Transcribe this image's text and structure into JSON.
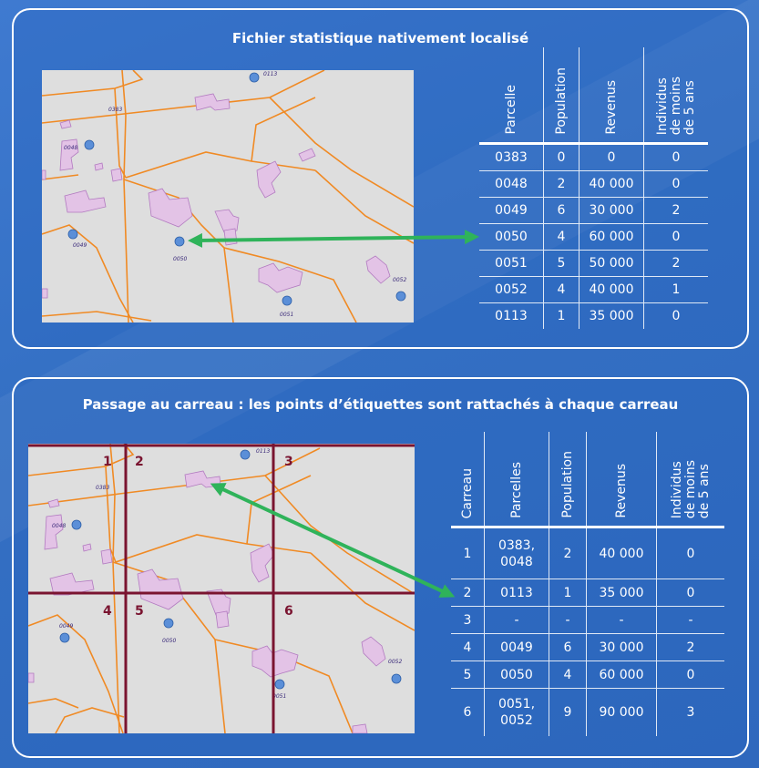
{
  "panel1": {
    "title": "Fichier statistique nativement localisé",
    "map_labels": [
      "0113",
      "0383",
      "0048",
      "0049",
      "0050",
      "0052",
      "0051"
    ],
    "table": {
      "headers": [
        "Parcelle",
        "Population",
        "Revenus",
        "Individus\nde moins\nde 5 ans"
      ],
      "rows": [
        [
          "0383",
          "0",
          "0",
          "0"
        ],
        [
          "0048",
          "2",
          "40 000",
          "0"
        ],
        [
          "0049",
          "6",
          "30 000",
          "2"
        ],
        [
          "0050",
          "4",
          "60 000",
          "0"
        ],
        [
          "0051",
          "5",
          "50 000",
          "2"
        ],
        [
          "0052",
          "4",
          "40 000",
          "1"
        ],
        [
          "0113",
          "1",
          "35 000",
          "0"
        ]
      ]
    }
  },
  "panel2": {
    "title": "Passage au carreau : les points d’étiquettes sont rattachés à chaque carreau",
    "grid_numbers": [
      "1",
      "2",
      "3",
      "4",
      "5",
      "6"
    ],
    "map_labels": [
      "0113",
      "0383",
      "0048",
      "0049",
      "0050",
      "0052",
      "0051"
    ],
    "table": {
      "headers": [
        "Carreau",
        "Parcelles",
        "Population",
        "Revenus",
        "Individus\nde moins\nde 5 ans"
      ],
      "rows": [
        [
          "1",
          "0383,\n0048",
          "2",
          "40 000",
          "0"
        ],
        [
          "2",
          "0113",
          "1",
          "35 000",
          "0"
        ],
        [
          "3",
          "-",
          "-",
          "-",
          "-"
        ],
        [
          "4",
          "0049",
          "6",
          "30 000",
          "2"
        ],
        [
          "5",
          "0050",
          "4",
          "60 000",
          "0"
        ],
        [
          "6",
          "0051,\n0052",
          "9",
          "90 000",
          "3"
        ]
      ]
    }
  },
  "colors": {
    "background": "#3470c4",
    "map_fill": "#dedede",
    "parcel_line": "#f08a24",
    "building_fill": "#e3c3e6",
    "point_fill": "#5b8fd8",
    "grid_line": "#7a1430",
    "arrow": "#2fb35a"
  }
}
